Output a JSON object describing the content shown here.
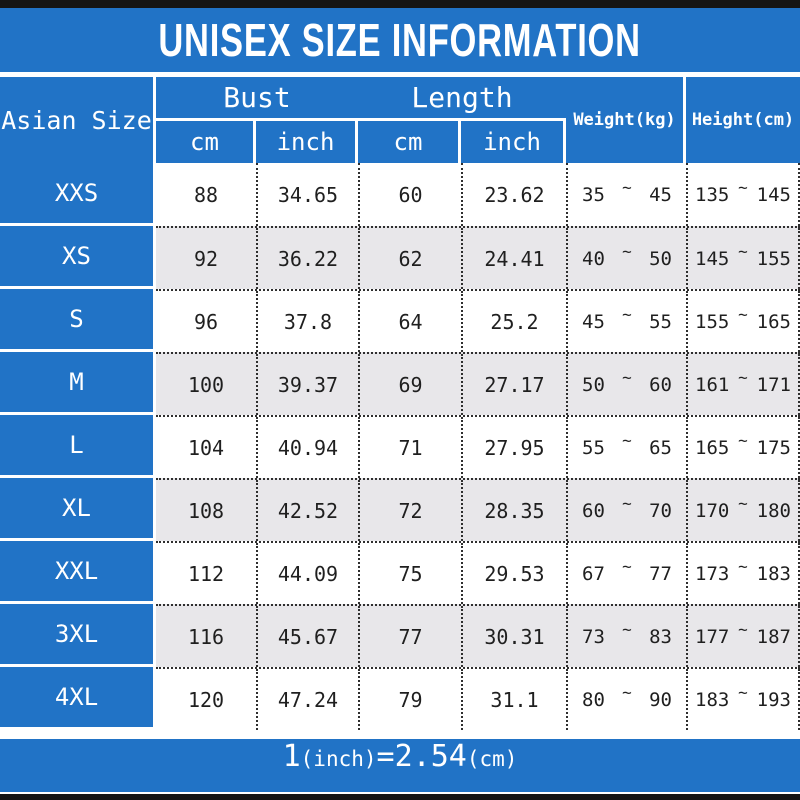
{
  "title": "UNISEX SIZE INFORMATION",
  "colors": {
    "blue": "#2173c6",
    "alt_row_gray": "#e8e7ea",
    "frame_black": "#151515",
    "text_dark": "#1f1f1f",
    "header_text": "#ffffff"
  },
  "footer": {
    "parts": [
      "1",
      "(inch)",
      "=",
      "2.54",
      "(cm)"
    ]
  },
  "chart_data": {
    "type": "table",
    "title": "UNISEX SIZE INFORMATION",
    "corner_header": "Asian Size",
    "column_groups": [
      {
        "label": "Bust",
        "subcolumns": [
          "cm",
          "inch"
        ]
      },
      {
        "label": "Length",
        "subcolumns": [
          "cm",
          "inch"
        ]
      }
    ],
    "single_columns": [
      "Weight(kg)",
      "Height(cm)"
    ],
    "range_separator": "~",
    "rows": [
      {
        "size": "XXS",
        "bust_cm": "88",
        "bust_inch": "34.65",
        "length_cm": "60",
        "length_inch": "23.62",
        "weight_min": "35",
        "weight_max": "45",
        "height_min": "135",
        "height_max": "145"
      },
      {
        "size": "XS",
        "bust_cm": "92",
        "bust_inch": "36.22",
        "length_cm": "62",
        "length_inch": "24.41",
        "weight_min": "40",
        "weight_max": "50",
        "height_min": "145",
        "height_max": "155"
      },
      {
        "size": "S",
        "bust_cm": "96",
        "bust_inch": "37.8",
        "length_cm": "64",
        "length_inch": "25.2",
        "weight_min": "45",
        "weight_max": "55",
        "height_min": "155",
        "height_max": "165"
      },
      {
        "size": "M",
        "bust_cm": "100",
        "bust_inch": "39.37",
        "length_cm": "69",
        "length_inch": "27.17",
        "weight_min": "50",
        "weight_max": "60",
        "height_min": "161",
        "height_max": "171"
      },
      {
        "size": "L",
        "bust_cm": "104",
        "bust_inch": "40.94",
        "length_cm": "71",
        "length_inch": "27.95",
        "weight_min": "55",
        "weight_max": "65",
        "height_min": "165",
        "height_max": "175"
      },
      {
        "size": "XL",
        "bust_cm": "108",
        "bust_inch": "42.52",
        "length_cm": "72",
        "length_inch": "28.35",
        "weight_min": "60",
        "weight_max": "70",
        "height_min": "170",
        "height_max": "180"
      },
      {
        "size": "XXL",
        "bust_cm": "112",
        "bust_inch": "44.09",
        "length_cm": "75",
        "length_inch": "29.53",
        "weight_min": "67",
        "weight_max": "77",
        "height_min": "173",
        "height_max": "183"
      },
      {
        "size": "3XL",
        "bust_cm": "116",
        "bust_inch": "45.67",
        "length_cm": "77",
        "length_inch": "30.31",
        "weight_min": "73",
        "weight_max": "83",
        "height_min": "177",
        "height_max": "187"
      },
      {
        "size": "4XL",
        "bust_cm": "120",
        "bust_inch": "47.24",
        "length_cm": "79",
        "length_inch": "31.1",
        "weight_min": "80",
        "weight_max": "90",
        "height_min": "183",
        "height_max": "193"
      }
    ],
    "footnote": "1(inch)=2.54(cm)"
  }
}
